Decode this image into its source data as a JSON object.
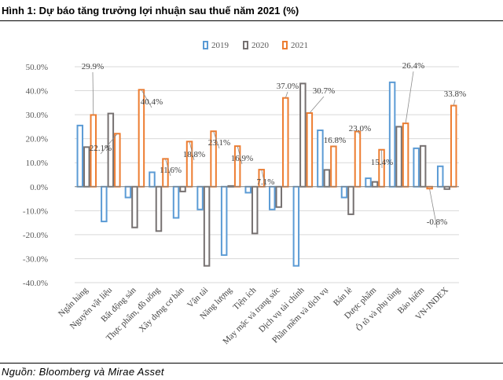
{
  "title": "Hình 1: Dự báo tăng trưởng lợi nhuận sau thuế năm 2021 (%)",
  "source": "Nguồn: Bloomberg và Mirae Asset",
  "colors": {
    "2019": "#5b9bd5",
    "2020": "#767171",
    "2021": "#ed7d31",
    "grid": "#d9d9d9",
    "axis": "#595959"
  },
  "chart_data": {
    "type": "bar",
    "title": "Dự báo tăng trưởng lợi nhuận sau thuế năm 2021 (%)",
    "ylim": [
      -40,
      50
    ],
    "yticks": [
      -40,
      -30,
      -20,
      -10,
      0,
      10,
      20,
      30,
      40,
      50
    ],
    "ytick_labels": [
      "-40.0%",
      "-30.0%",
      "-20.0%",
      "-10.0%",
      "0.0%",
      "10.0%",
      "20.0%",
      "30.0%",
      "40.0%",
      "50.0%"
    ],
    "legend": "top-center",
    "grid": true,
    "categories": [
      "Ngân hàng",
      "Nguyên vật liệu",
      "Bất động sản",
      "Thực phẩm, đồ uống",
      "Xây dựng cơ bản",
      "Vận tải",
      "Năng lượng",
      "Tiện ích",
      "May mặc và trang sức",
      "Dịch vụ tài chính",
      "Phần mềm và dịch vụ",
      "Bán lẻ",
      "Dược phẩm",
      "Ô tô và phụ tùng",
      "Bảo hiểm",
      "VN-INDEX"
    ],
    "series": [
      {
        "name": "2019",
        "values": [
          25.5,
          -14.5,
          -4.5,
          6.0,
          -13.0,
          -9.5,
          -28.5,
          -2.5,
          -9.5,
          -33.0,
          23.5,
          -4.5,
          3.5,
          43.5,
          16.0,
          8.5
        ]
      },
      {
        "name": "2020",
        "values": [
          16.5,
          30.5,
          -17.0,
          -18.5,
          -2.0,
          -33.0,
          0.3,
          -19.5,
          -8.5,
          43.0,
          7.0,
          -11.5,
          2.0,
          25.0,
          17.0,
          -1.0
        ]
      },
      {
        "name": "2021",
        "values": [
          29.9,
          22.1,
          40.4,
          11.6,
          18.8,
          23.1,
          16.9,
          7.1,
          37.0,
          30.7,
          16.8,
          23.0,
          15.4,
          26.4,
          -0.8,
          33.8
        ]
      }
    ],
    "annotations": [
      "29.9%",
      "22.1%",
      "40.4%",
      "11.6%",
      "18.8%",
      "23.1%",
      "16.9%",
      "7.1%",
      "37.0%",
      "30.7%",
      "16.8%",
      "23.0%",
      "15.4%",
      "26.4%",
      "-0.8%",
      "33.8%"
    ]
  }
}
